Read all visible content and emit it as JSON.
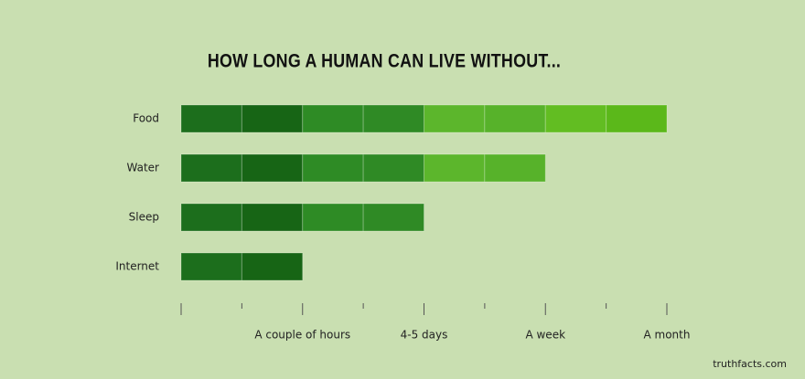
{
  "chart_data": {
    "type": "bar",
    "orientation": "horizontal",
    "title": "HOW LONG A HUMAN CAN LIVE WITHOUT...",
    "categories": [
      "Food",
      "Water",
      "Sleep",
      "Internet"
    ],
    "values": [
      8,
      6,
      4,
      2
    ],
    "segment_colors": [
      "#1c6e1c",
      "#176515",
      "#2e8b25",
      "#2f8a25",
      "#5cb62c",
      "#57b22a",
      "#62bd22",
      "#5bb81a"
    ],
    "xlim": [
      0,
      8
    ],
    "xticks": [
      {
        "value": 0,
        "label": null
      },
      {
        "value": 1,
        "label": null
      },
      {
        "value": 2,
        "label": "A couple of hours"
      },
      {
        "value": 3,
        "label": null
      },
      {
        "value": 4,
        "label": "4-5 days"
      },
      {
        "value": 5,
        "label": null
      },
      {
        "value": 6,
        "label": "A week"
      },
      {
        "value": 7,
        "label": null
      },
      {
        "value": 8,
        "label": "A month"
      }
    ],
    "source": "truthfacts.com"
  }
}
